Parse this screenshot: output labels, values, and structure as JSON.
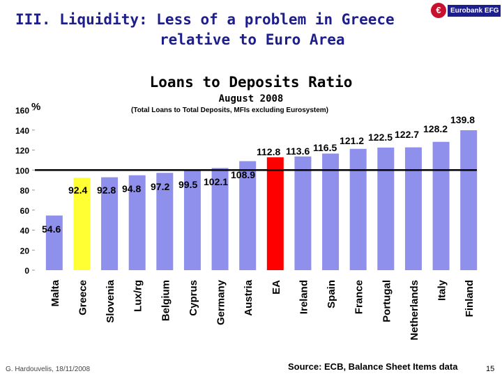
{
  "slide": {
    "title_line1": "III.  Liquidity:  Less of a problem in Greece",
    "title_line2": "relative to Euro Area",
    "logo_mark": "€",
    "logo_text": "Eurobank EFG",
    "author": "G. Hardouvelis, 18/11/2008",
    "source": "Source: ECB, Balance Sheet Items data",
    "page_number": "15"
  },
  "colors": {
    "bar_default": "#8f8fec",
    "bar_greece": "#ffff33",
    "bar_ea": "#ff0000",
    "title_blue": "#1d1d8c",
    "reference_line": "#000000"
  },
  "chart_data": {
    "type": "bar",
    "title": "Loans to Deposits Ratio",
    "subtitle": "August 2008",
    "note": "(Total Loans to Total Deposits, MFIs excluding Eurosystem)",
    "unit": "%",
    "categories": [
      "Malta",
      "Greece",
      "Slovenia",
      "Lux/rg",
      "Belgium",
      "Cyprus",
      "Germany",
      "Austria",
      "EA",
      "Ireland",
      "Spain",
      "France",
      "Portugal",
      "Netherlands",
      "Italy",
      "Finland"
    ],
    "values": [
      54.6,
      92.4,
      92.8,
      94.8,
      97.2,
      99.5,
      102.1,
      108.9,
      112.8,
      113.6,
      116.5,
      121.2,
      122.5,
      122.7,
      128.2,
      139.8
    ],
    "data_labels": [
      "54.6",
      "92.4",
      "92.8",
      "94.8",
      "97.2",
      "99.5",
      "102.1",
      "108.9",
      "112.8",
      "113.6",
      "116.5",
      "121.2",
      "122.5",
      "122.7",
      "128.2",
      "139.8"
    ],
    "highlight": {
      "Greece": "bar_greece",
      "EA": "bar_ea"
    },
    "reference_line": 100,
    "ylim": [
      0,
      160
    ],
    "yticks": [
      "0",
      "20",
      "40",
      "60",
      "80",
      "100",
      "120",
      "140",
      "160"
    ],
    "yticks_values": [
      0,
      20,
      40,
      60,
      80,
      100,
      120,
      140,
      160
    ],
    "grid": false,
    "legend": "none"
  }
}
